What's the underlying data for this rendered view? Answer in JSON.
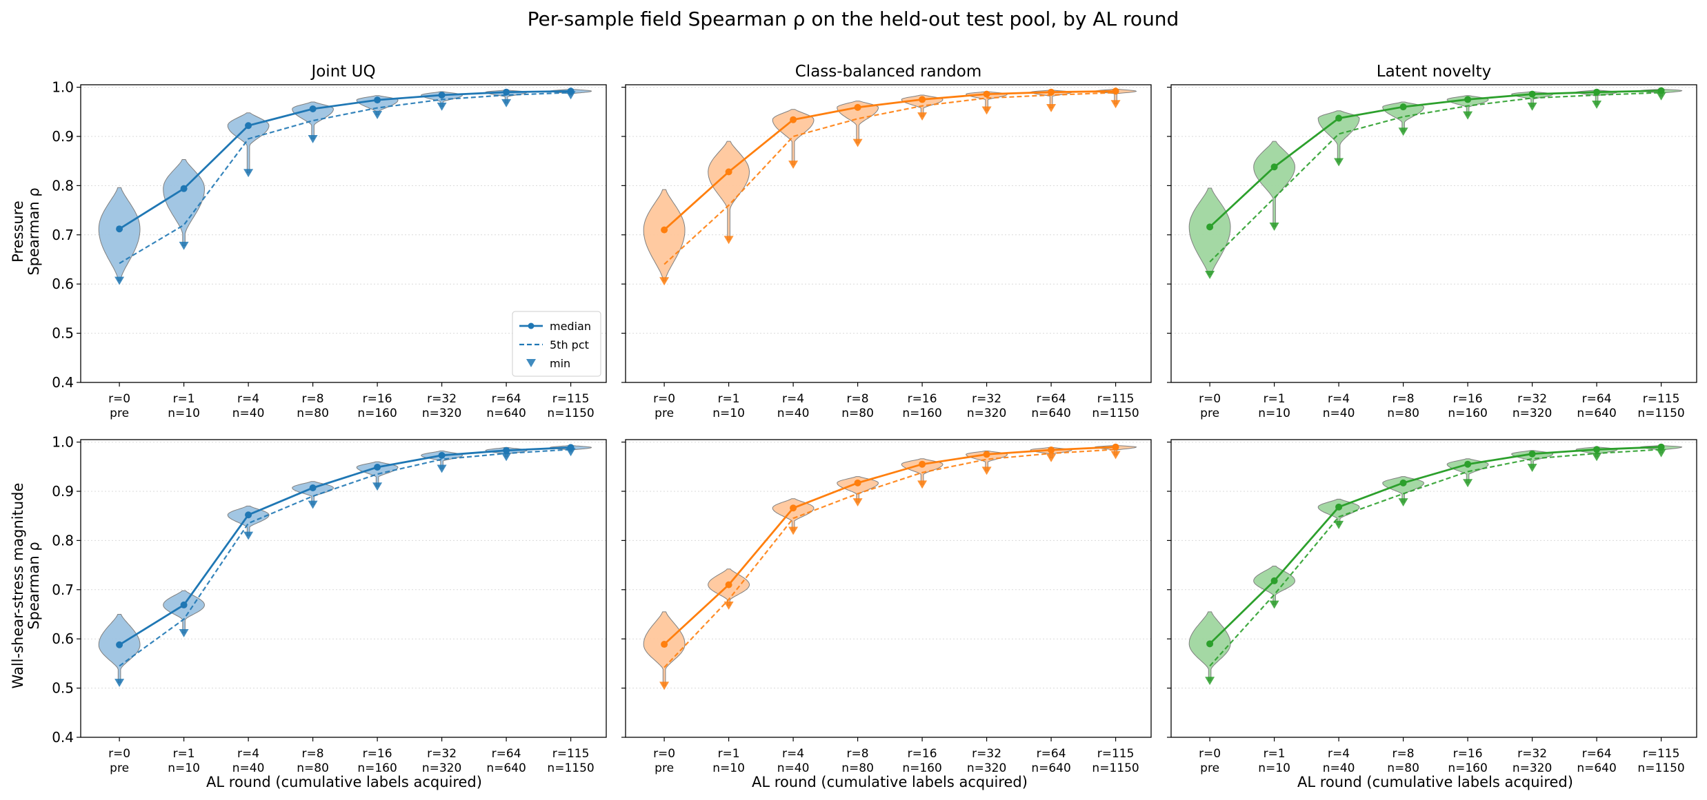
{
  "figure": {
    "title": "Per-sample field Spearman ρ on the held-out test pool, by AL round",
    "xlabel": "AL round  (cumulative labels acquired)",
    "row_labels": [
      [
        "Pressure",
        "Spearman ρ"
      ],
      [
        "Wall-shear-stress magnitude",
        "Spearman ρ"
      ]
    ],
    "column_titles": [
      "Joint UQ",
      "Class-balanced random",
      "Latent novelty"
    ],
    "legend": {
      "median": "median",
      "p5": "5th pct",
      "min": "min",
      "placement": "lower-right of first panel"
    }
  },
  "chart_data": {
    "type": "violin",
    "ylim": [
      0.4,
      1.0
    ],
    "yticks": [
      "0.4",
      "0.5",
      "0.6",
      "0.7",
      "0.8",
      "0.9",
      "1.0"
    ],
    "grid": "horizontal dotted",
    "x_categories": [
      [
        "r=0",
        "pre"
      ],
      [
        "r=1",
        "n=10"
      ],
      [
        "r=4",
        "n=40"
      ],
      [
        "r=8",
        "n=80"
      ],
      [
        "r=16",
        "n=160"
      ],
      [
        "r=32",
        "n=320"
      ],
      [
        "r=64",
        "n=640"
      ],
      [
        "r=115",
        "n=1150"
      ]
    ],
    "strategy_colors": [
      "#1f77b4",
      "#ff7f0e",
      "#2ca02c"
    ],
    "strategy_fill_colors": [
      "#9dc3e2",
      "#ffc79c",
      "#9fd69f"
    ],
    "panels": [
      {
        "row": 0,
        "col": 0,
        "median": [
          0.712,
          0.794,
          0.922,
          0.956,
          0.974,
          0.984,
          0.99,
          0.992
        ],
        "p5": [
          0.642,
          0.72,
          0.895,
          0.932,
          0.958,
          0.975,
          0.984,
          0.989
        ],
        "min": [
          0.607,
          0.678,
          0.826,
          0.895,
          0.944,
          0.961,
          0.968,
          0.984
        ],
        "violin_low": [
          0.612,
          0.705,
          0.883,
          0.924,
          0.951,
          0.971,
          0.981,
          0.987
        ],
        "violin_high": [
          0.796,
          0.853,
          0.948,
          0.97,
          0.983,
          0.991,
          0.994,
          0.996
        ]
      },
      {
        "row": 0,
        "col": 1,
        "median": [
          0.71,
          0.828,
          0.934,
          0.959,
          0.975,
          0.986,
          0.99,
          0.992
        ],
        "p5": [
          0.64,
          0.76,
          0.9,
          0.936,
          0.962,
          0.978,
          0.984,
          0.989
        ],
        "min": [
          0.606,
          0.69,
          0.843,
          0.887,
          0.941,
          0.953,
          0.958,
          0.966
        ],
        "violin_low": [
          0.612,
          0.755,
          0.89,
          0.924,
          0.958,
          0.975,
          0.982,
          0.987
        ],
        "violin_high": [
          0.792,
          0.89,
          0.955,
          0.972,
          0.984,
          0.991,
          0.994,
          0.996
        ]
      },
      {
        "row": 0,
        "col": 2,
        "median": [
          0.716,
          0.838,
          0.937,
          0.96,
          0.975,
          0.986,
          0.99,
          0.993
        ],
        "p5": [
          0.645,
          0.775,
          0.905,
          0.94,
          0.962,
          0.978,
          0.984,
          0.989
        ],
        "min": [
          0.619,
          0.717,
          0.848,
          0.91,
          0.943,
          0.961,
          0.965,
          0.982
        ],
        "violin_low": [
          0.62,
          0.775,
          0.885,
          0.93,
          0.96,
          0.976,
          0.983,
          0.988
        ],
        "violin_high": [
          0.795,
          0.89,
          0.952,
          0.97,
          0.983,
          0.991,
          0.994,
          0.996
        ]
      },
      {
        "row": 1,
        "col": 0,
        "median": [
          0.588,
          0.669,
          0.852,
          0.907,
          0.949,
          0.973,
          0.983,
          0.989
        ],
        "p5": [
          0.545,
          0.64,
          0.835,
          0.89,
          0.935,
          0.965,
          0.977,
          0.985
        ],
        "min": [
          0.511,
          0.612,
          0.81,
          0.873,
          0.91,
          0.946,
          0.97,
          0.98
        ],
        "violin_low": [
          0.54,
          0.64,
          0.828,
          0.89,
          0.93,
          0.962,
          0.976,
          0.984
        ],
        "violin_high": [
          0.65,
          0.698,
          0.87,
          0.92,
          0.96,
          0.982,
          0.989,
          0.993
        ]
      },
      {
        "row": 1,
        "col": 1,
        "median": [
          0.589,
          0.71,
          0.866,
          0.917,
          0.955,
          0.975,
          0.984,
          0.99
        ],
        "p5": [
          0.542,
          0.68,
          0.845,
          0.895,
          0.938,
          0.965,
          0.977,
          0.985
        ],
        "min": [
          0.505,
          0.668,
          0.82,
          0.878,
          0.914,
          0.942,
          0.968,
          0.974
        ],
        "violin_low": [
          0.54,
          0.68,
          0.84,
          0.895,
          0.935,
          0.96,
          0.976,
          0.984
        ],
        "violin_high": [
          0.655,
          0.742,
          0.885,
          0.93,
          0.966,
          0.982,
          0.989,
          0.993
        ]
      },
      {
        "row": 1,
        "col": 2,
        "median": [
          0.59,
          0.718,
          0.868,
          0.917,
          0.955,
          0.976,
          0.985,
          0.99
        ],
        "p5": [
          0.545,
          0.69,
          0.848,
          0.895,
          0.94,
          0.966,
          0.977,
          0.985
        ],
        "min": [
          0.515,
          0.67,
          0.832,
          0.878,
          0.917,
          0.948,
          0.97,
          0.978
        ],
        "violin_low": [
          0.54,
          0.69,
          0.845,
          0.895,
          0.935,
          0.962,
          0.976,
          0.984
        ],
        "violin_high": [
          0.655,
          0.748,
          0.884,
          0.93,
          0.966,
          0.983,
          0.99,
          0.993
        ]
      }
    ]
  }
}
